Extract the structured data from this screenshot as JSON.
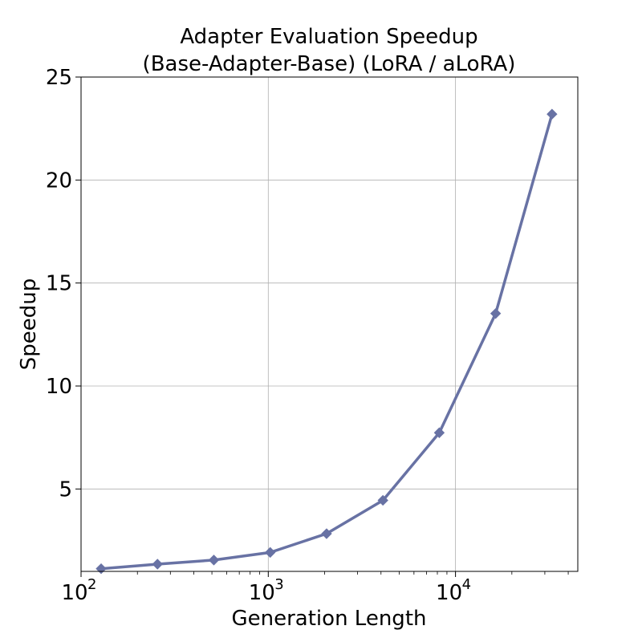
{
  "chart_data": {
    "type": "line",
    "title": "Adapter Evaluation Speedup",
    "subtitle": "(Base-Adapter-Base) (LoRA / aLoRA)",
    "xlabel": "Generation Length",
    "ylabel": "Speedup",
    "xscale": "log",
    "xlim": [
      100,
      45000
    ],
    "ylim": [
      1,
      25
    ],
    "grid": true,
    "x_ticks": [
      {
        "base": "10",
        "exp": "2",
        "value": 100
      },
      {
        "base": "10",
        "exp": "3",
        "value": 1000
      },
      {
        "base": "10",
        "exp": "4",
        "value": 10000
      }
    ],
    "y_ticks": [
      5,
      10,
      15,
      20,
      25
    ],
    "series": [
      {
        "color": "#6872a4",
        "marker": "diamond",
        "x": [
          128,
          256,
          512,
          1024,
          2048,
          4096,
          8192,
          16384,
          32768
        ],
        "y": [
          1.13,
          1.35,
          1.55,
          1.92,
          2.83,
          4.45,
          7.73,
          13.52,
          23.2
        ]
      }
    ]
  }
}
